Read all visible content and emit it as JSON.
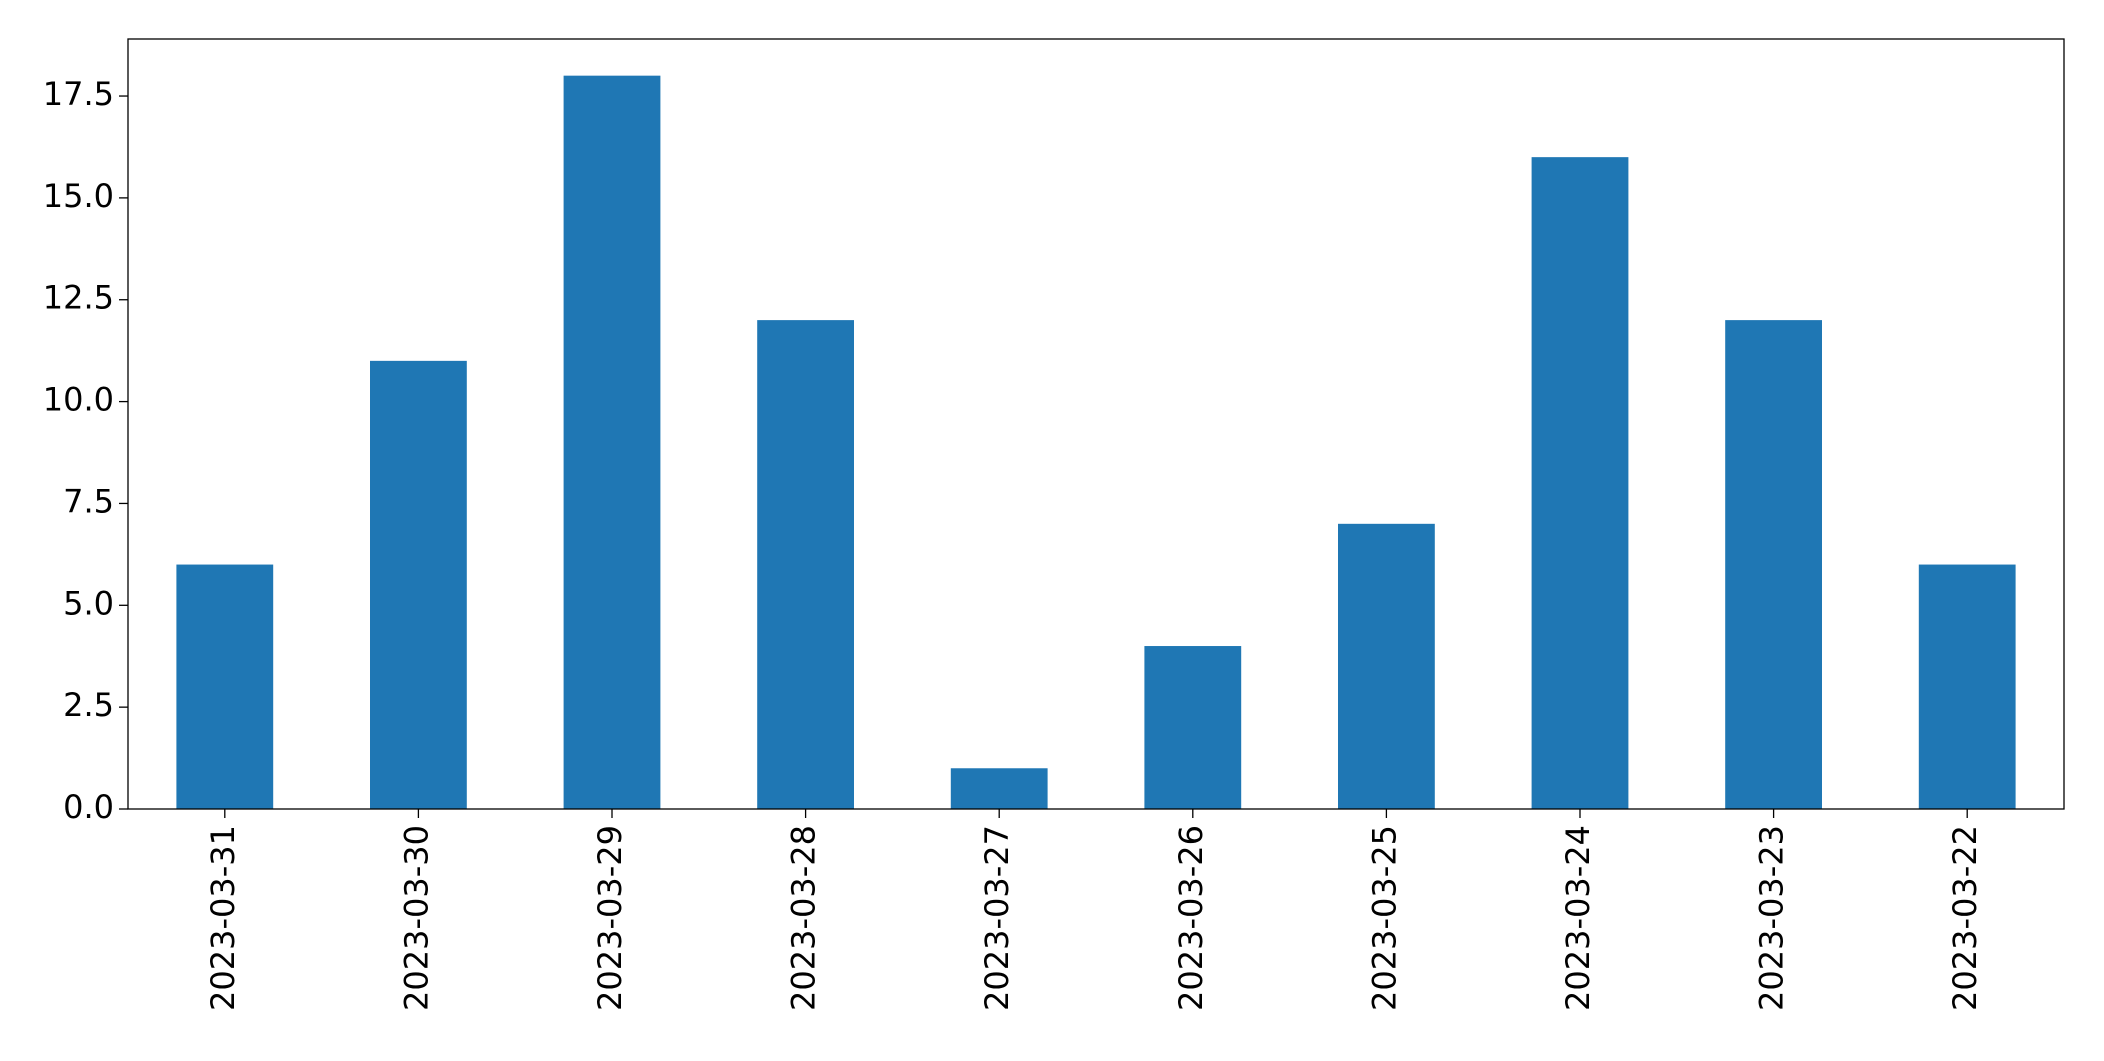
{
  "chart_data": {
    "type": "bar",
    "categories": [
      "2023-03-31",
      "2023-03-30",
      "2023-03-29",
      "2023-03-28",
      "2023-03-27",
      "2023-03-26",
      "2023-03-25",
      "2023-03-24",
      "2023-03-23",
      "2023-03-22"
    ],
    "values": [
      6,
      11,
      18,
      12,
      1,
      4,
      7,
      16,
      12,
      6
    ],
    "color": "#1f77b4",
    "ylim": [
      0,
      18.9
    ],
    "yticks": [
      {
        "value": 0,
        "label": "0.0"
      },
      2.5,
      {
        "value": 5,
        "label": "5.0"
      },
      7.5,
      {
        "value": 10,
        "label": "10.0"
      },
      12.5,
      {
        "value": 15,
        "label": "15.0"
      },
      17.5
    ],
    "grid": false
  }
}
